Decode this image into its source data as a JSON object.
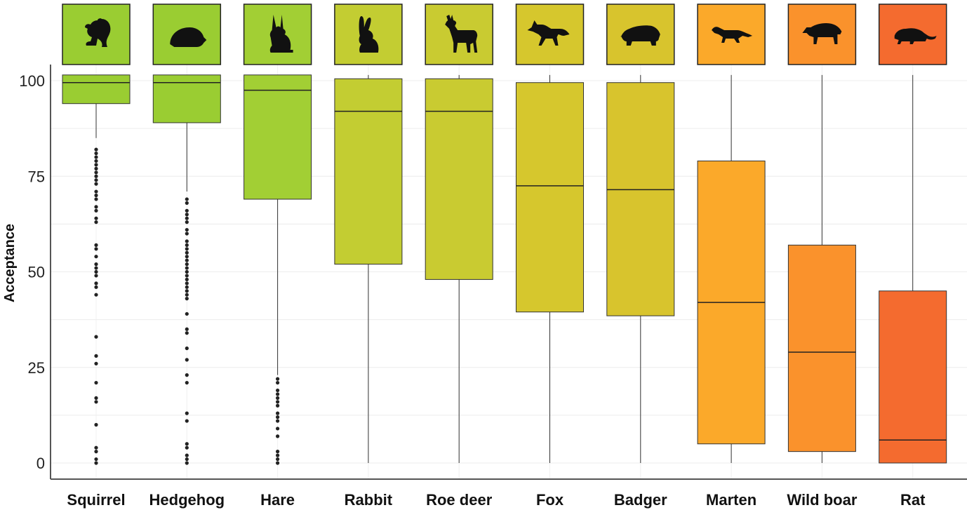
{
  "chart_data": {
    "type": "box",
    "title": "",
    "xlabel": "",
    "ylabel": "Acceptance",
    "ylim": [
      0,
      100
    ],
    "yticks": [
      0,
      25,
      50,
      75,
      100
    ],
    "grid": true,
    "categories": [
      "Squirrel",
      "Hedgehog",
      "Hare",
      "Rabbit",
      "Roe deer",
      "Fox",
      "Badger",
      "Marten",
      "Wild boar",
      "Rat"
    ],
    "boxes": [
      {
        "name": "Squirrel",
        "icon": "squirrel-icon",
        "color": "#9acd32",
        "min": 85,
        "q1": 94,
        "median": 99.5,
        "q3": 101.5,
        "max": 101.5,
        "outliers": [
          82,
          81,
          80,
          79,
          78,
          77,
          76,
          75,
          74,
          73,
          71,
          70,
          69,
          67,
          66,
          64,
          63,
          57,
          56,
          54,
          52,
          51,
          50,
          49,
          47,
          46,
          44,
          33,
          28,
          26,
          21,
          17,
          16,
          10,
          4,
          3,
          1,
          0
        ]
      },
      {
        "name": "Hedgehog",
        "icon": "hedgehog-icon",
        "color": "#9acd32",
        "min": 71,
        "q1": 89,
        "median": 99.5,
        "q3": 101.5,
        "max": 101.5,
        "outliers": [
          69,
          68,
          66,
          65,
          64,
          63,
          61,
          60,
          58,
          57,
          56,
          55,
          54,
          53,
          52,
          51,
          50,
          49,
          48,
          47,
          46,
          45,
          44,
          43,
          39,
          35,
          34,
          30,
          27,
          23,
          21,
          13,
          11,
          5,
          4,
          2,
          1,
          0
        ]
      },
      {
        "name": "Hare",
        "icon": "hare-icon",
        "color": "#a2cf34",
        "min": 23,
        "q1": 69,
        "median": 97.5,
        "q3": 101.5,
        "max": 101.5,
        "outliers": [
          22,
          21,
          19,
          18,
          17,
          16,
          15,
          13,
          12,
          11,
          9,
          7,
          3,
          2,
          1,
          0
        ]
      },
      {
        "name": "Rabbit",
        "icon": "rabbit-icon",
        "color": "#c3cd32",
        "min": 0,
        "q1": 52,
        "median": 92,
        "q3": 100.5,
        "max": 101.5,
        "outliers": []
      },
      {
        "name": "Roe deer",
        "icon": "roe-deer-icon",
        "color": "#c9cb31",
        "min": 0,
        "q1": 48,
        "median": 92,
        "q3": 100.5,
        "max": 101.5,
        "outliers": []
      },
      {
        "name": "Fox",
        "icon": "fox-icon",
        "color": "#d6c72d",
        "min": 0,
        "q1": 39.5,
        "median": 72.5,
        "q3": 99.5,
        "max": 101.5,
        "outliers": []
      },
      {
        "name": "Badger",
        "icon": "badger-icon",
        "color": "#d8c42d",
        "min": 0,
        "q1": 38.5,
        "median": 71.5,
        "q3": 99.5,
        "max": 101.5,
        "outliers": []
      },
      {
        "name": "Marten",
        "icon": "marten-icon",
        "color": "#fba92a",
        "min": 0,
        "q1": 5,
        "median": 42,
        "q3": 79,
        "max": 101.5,
        "outliers": []
      },
      {
        "name": "Wild boar",
        "icon": "wild-boar-icon",
        "color": "#fa922c",
        "min": 0,
        "q1": 3,
        "median": 29,
        "q3": 57,
        "max": 101.5,
        "outliers": []
      },
      {
        "name": "Rat",
        "icon": "rat-icon",
        "color": "#f46b2f",
        "min": 0,
        "q1": 0,
        "median": 6,
        "q3": 45,
        "max": 101.5,
        "outliers": []
      }
    ]
  }
}
